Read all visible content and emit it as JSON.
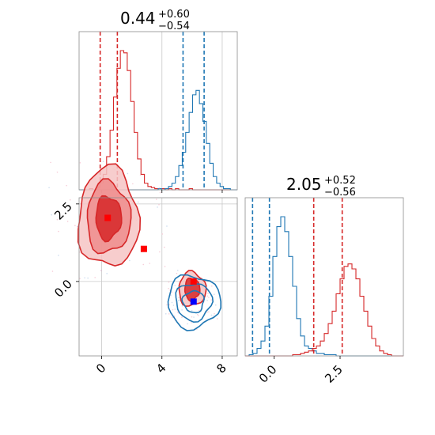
{
  "colors": {
    "red": "#d62728",
    "blue": "#1f77b4",
    "red_fill": "#f2a0a0",
    "red_fill_dark": "#d62728"
  },
  "chart_data": {
    "type": "corner",
    "panels": [
      {
        "name": "hist-param-1",
        "type": "histogram",
        "title": {
          "value": "0.44",
          "plus": "+0.60",
          "minus": "−0.54"
        },
        "xlim": [
          -1.5,
          9.0
        ],
        "grid": true,
        "series": [
          {
            "color": "red",
            "quantiles": [
              -0.1,
              0.44,
              1.04
            ],
            "counts": [
              0,
              0,
              0,
              1,
              0,
              2,
              6,
              14,
              30,
              54,
              84,
              110,
              126,
              124,
              108,
              80,
              52,
              28,
              14,
              6,
              3,
              2,
              1,
              1,
              1,
              0,
              1,
              0,
              1,
              0,
              0,
              0,
              1,
              0,
              0,
              0,
              0,
              0,
              0,
              0,
              0,
              0,
              0,
              0,
              0,
              0
            ]
          },
          {
            "color": "blue",
            "quantiles": [
              5.4,
              6.1,
              6.8
            ],
            "counts": [
              0,
              0,
              0,
              0,
              0,
              0,
              0,
              0,
              0,
              0,
              0,
              0,
              0,
              0,
              0,
              0,
              0,
              0,
              0,
              0,
              0,
              0,
              0,
              1,
              0,
              1,
              3,
              6,
              12,
              22,
              34,
              52,
              70,
              86,
              90,
              78,
              62,
              42,
              24,
              12,
              6,
              3,
              1,
              1,
              0,
              0
            ]
          }
        ]
      },
      {
        "name": "hist-param-2",
        "type": "histogram",
        "title": {
          "value": "2.05",
          "plus": "+0.52",
          "minus": "−0.56"
        },
        "xlim": [
          -1.1,
          4.9
        ],
        "grid": false,
        "xticks": [
          "0.0",
          "2.5"
        ],
        "series": [
          {
            "color": "blue",
            "quantiles": [
              -0.82,
              -0.5,
              -0.18
            ],
            "counts": [
              0,
              1,
              2,
              6,
              12,
              24,
              48,
              80,
              104,
              112,
              100,
              80,
              56,
              30,
              16,
              8,
              6,
              4,
              2,
              2,
              1,
              1,
              1,
              0,
              0,
              0,
              0,
              0,
              0,
              0,
              0,
              0,
              0,
              0,
              0,
              0,
              0,
              0,
              0,
              0
            ]
          },
          {
            "color": "red",
            "quantiles": [
              1.5,
              2.05,
              2.58
            ],
            "counts": [
              0,
              0,
              0,
              0,
              0,
              0,
              0,
              0,
              0,
              0,
              0,
              0,
              1,
              1,
              2,
              3,
              4,
              6,
              8,
              12,
              18,
              26,
              36,
              50,
              62,
              72,
              74,
              70,
              62,
              48,
              36,
              24,
              14,
              8,
              4,
              2,
              1,
              0,
              0,
              0
            ]
          }
        ]
      },
      {
        "name": "scatter-2d",
        "type": "contour",
        "xlim": [
          -1.5,
          9.0
        ],
        "ylim": [
          -2.4,
          2.7
        ],
        "grid": true,
        "xticks": [
          "0",
          "4",
          "8"
        ],
        "yticks": [
          "0.0",
          "2.5"
        ],
        "markers": [
          {
            "color": "red",
            "x": 0.4,
            "y": 2.05
          },
          {
            "color": "red",
            "x": 2.8,
            "y": 1.05
          },
          {
            "color": "red",
            "x": 6.1,
            "y": 0.0
          },
          {
            "color": "blue",
            "x": 6.1,
            "y": -0.65
          }
        ],
        "contours": [
          {
            "color": "red",
            "center": [
              0.44,
              2.05
            ],
            "radii": [
              [
                2.0,
                1.6
              ],
              [
                1.45,
                1.15
              ],
              [
                0.85,
                0.7
              ]
            ]
          },
          {
            "color": "red",
            "center": [
              6.0,
              -0.25
            ],
            "radii": [
              [
                0.9,
                0.55
              ],
              [
                0.5,
                0.35
              ]
            ]
          },
          {
            "color": "blue",
            "center": [
              6.1,
              -0.65
            ],
            "radii": [
              [
                1.75,
                0.85
              ],
              [
                1.2,
                0.6
              ],
              [
                0.7,
                0.35
              ]
            ]
          }
        ]
      }
    ]
  }
}
